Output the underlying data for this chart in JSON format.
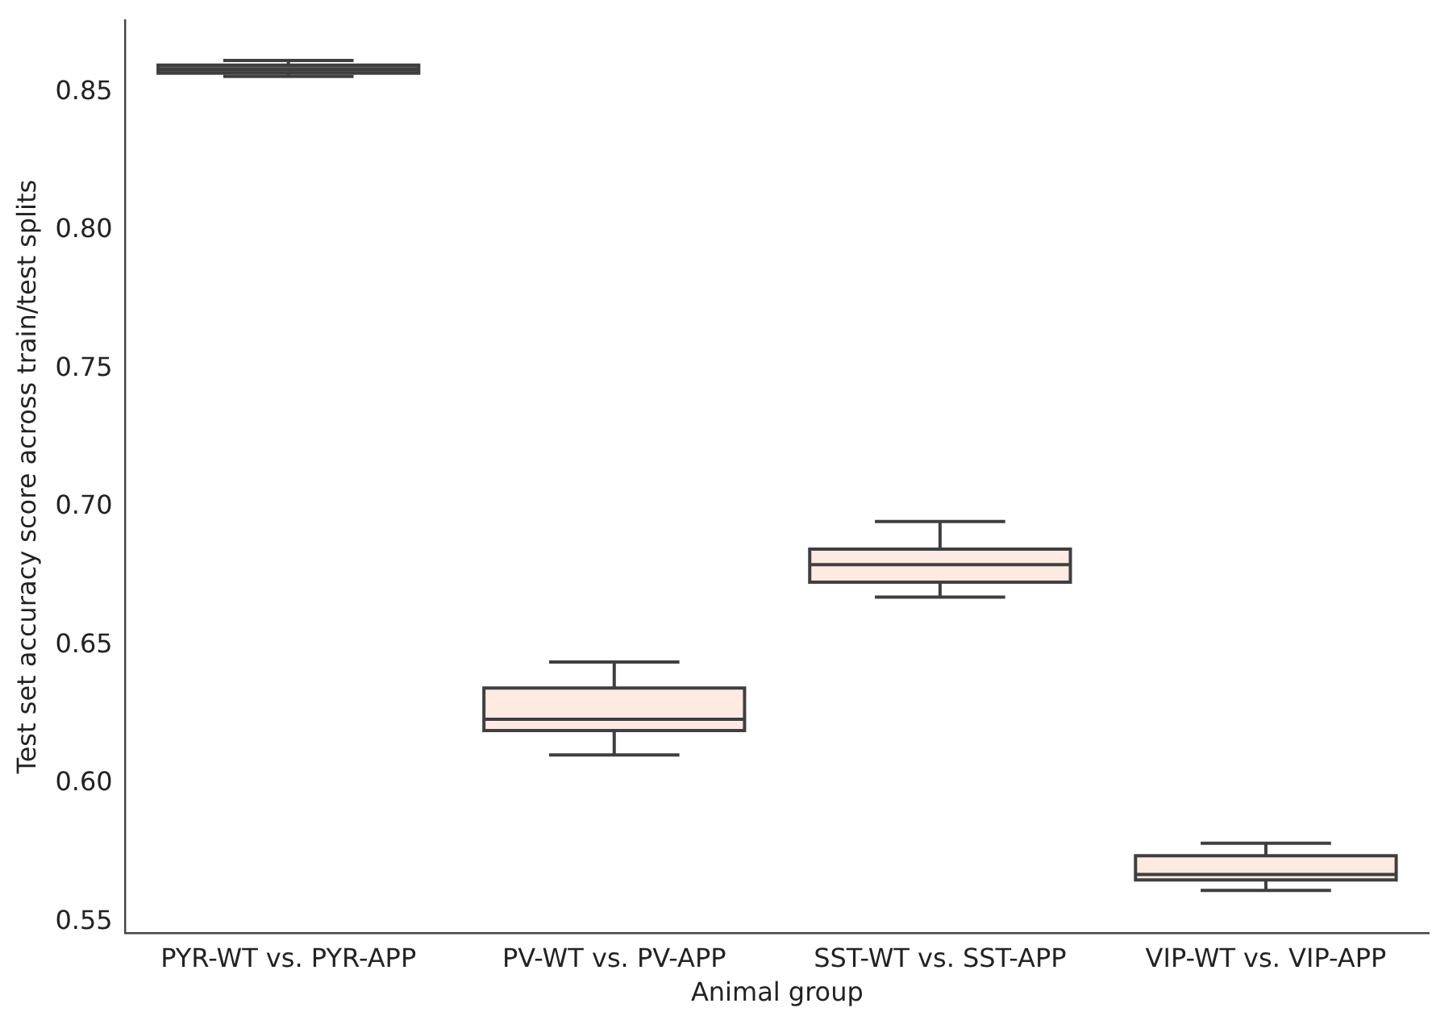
{
  "chart_data": {
    "type": "box",
    "xlabel": "Animal group",
    "ylabel": "Test set accuracy score across train/test splits",
    "categories": [
      "PYR-WT vs. PYR-APP",
      "PV-WT vs. PV-APP",
      "SST-WT vs. SST-APP",
      "VIP-WT vs. VIP-APP"
    ],
    "boxes": [
      {
        "low": 0.8557,
        "q1": 0.8569,
        "median": 0.8582,
        "q3": 0.8598,
        "high": 0.8615
      },
      {
        "low": 0.6104,
        "q1": 0.6192,
        "median": 0.6233,
        "q3": 0.6346,
        "high": 0.644
      },
      {
        "low": 0.6675,
        "q1": 0.6729,
        "median": 0.6792,
        "q3": 0.6848,
        "high": 0.6948
      },
      {
        "low": 0.5614,
        "q1": 0.5652,
        "median": 0.5672,
        "q3": 0.574,
        "high": 0.5785
      }
    ],
    "colors": [
      "#5a5a5a",
      "#fdeae3",
      "#fdeae3",
      "#fdeae3"
    ],
    "ylim": [
      0.546,
      0.876
    ],
    "yticks": [
      0.55,
      {
        "value": 0.6,
        "label": "0.60"
      },
      0.65,
      {
        "value": 0.7,
        "label": "0.70"
      },
      0.75,
      {
        "value": 0.8,
        "label": "0.80"
      },
      0.85
    ],
    "grid": false,
    "legend": false
  }
}
